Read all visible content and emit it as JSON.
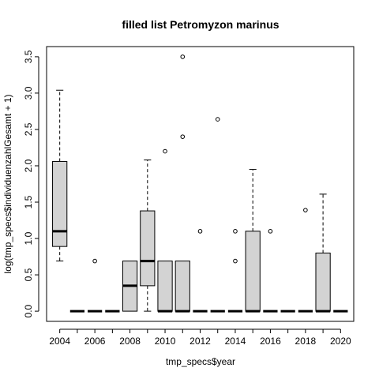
{
  "chart_data": {
    "type": "boxplot",
    "title": "filled list Petromyzon marinus",
    "xlabel": "tmp_specs$year",
    "ylabel": "log(tmp_specs$individuenzahlGesamt + 1)",
    "ylim": [
      -0.14,
      3.64
    ],
    "yticks": [
      "0.0",
      "0.5",
      "1.0",
      "1.5",
      "2.0",
      "2.5",
      "3.0",
      "3.5"
    ],
    "xticks": [
      "2004",
      "2006",
      "2008",
      "2010",
      "2012",
      "2014",
      "2016",
      "2018",
      "2020"
    ],
    "categories": [
      "2004",
      "2005",
      "2006",
      "2007",
      "2008",
      "2009",
      "2010",
      "2011",
      "2012",
      "2013",
      "2014",
      "2015",
      "2016",
      "2017",
      "2018",
      "2019",
      "2020"
    ],
    "grid": false,
    "box_fill": "#d3d3d3",
    "boxes": [
      {
        "year": "2004",
        "min": 0.69,
        "q1": 0.89,
        "median": 1.1,
        "q3": 2.06,
        "max": 3.04,
        "outliers": []
      },
      {
        "year": "2005",
        "min": 0,
        "q1": 0,
        "median": 0,
        "q3": 0,
        "max": 0,
        "outliers": []
      },
      {
        "year": "2006",
        "min": 0,
        "q1": 0,
        "median": 0,
        "q3": 0,
        "max": 0,
        "outliers": [
          0.69
        ]
      },
      {
        "year": "2007",
        "min": 0,
        "q1": 0,
        "median": 0,
        "q3": 0,
        "max": 0,
        "outliers": []
      },
      {
        "year": "2008",
        "min": 0,
        "q1": 0,
        "median": 0.35,
        "q3": 0.69,
        "max": 0.69,
        "outliers": []
      },
      {
        "year": "2009",
        "min": 0,
        "q1": 0.35,
        "median": 0.69,
        "q3": 1.38,
        "max": 2.08,
        "outliers": []
      },
      {
        "year": "2010",
        "min": 0,
        "q1": 0,
        "median": 0,
        "q3": 0.69,
        "max": 0.69,
        "outliers": [
          2.2
        ]
      },
      {
        "year": "2011",
        "min": 0,
        "q1": 0,
        "median": 0,
        "q3": 0.69,
        "max": 0.69,
        "outliers": [
          2.4,
          3.5
        ]
      },
      {
        "year": "2012",
        "min": 0,
        "q1": 0,
        "median": 0,
        "q3": 0,
        "max": 0,
        "outliers": [
          1.1
        ]
      },
      {
        "year": "2013",
        "min": 0,
        "q1": 0,
        "median": 0,
        "q3": 0,
        "max": 0,
        "outliers": [
          2.64
        ]
      },
      {
        "year": "2014",
        "min": 0,
        "q1": 0,
        "median": 0,
        "q3": 0,
        "max": 0,
        "outliers": [
          0.69,
          1.1
        ]
      },
      {
        "year": "2015",
        "min": 0,
        "q1": 0,
        "median": 0,
        "q3": 1.1,
        "max": 1.95,
        "outliers": []
      },
      {
        "year": "2016",
        "min": 0,
        "q1": 0,
        "median": 0,
        "q3": 0,
        "max": 0,
        "outliers": [
          1.1
        ]
      },
      {
        "year": "2017",
        "min": 0,
        "q1": 0,
        "median": 0,
        "q3": 0,
        "max": 0,
        "outliers": []
      },
      {
        "year": "2018",
        "min": 0,
        "q1": 0,
        "median": 0,
        "q3": 0,
        "max": 0,
        "outliers": [
          1.39
        ]
      },
      {
        "year": "2019",
        "min": 0,
        "q1": 0,
        "median": 0,
        "q3": 0.8,
        "max": 1.61,
        "outliers": []
      },
      {
        "year": "2020",
        "min": 0,
        "q1": 0,
        "median": 0,
        "q3": 0,
        "max": 0,
        "outliers": []
      }
    ]
  }
}
